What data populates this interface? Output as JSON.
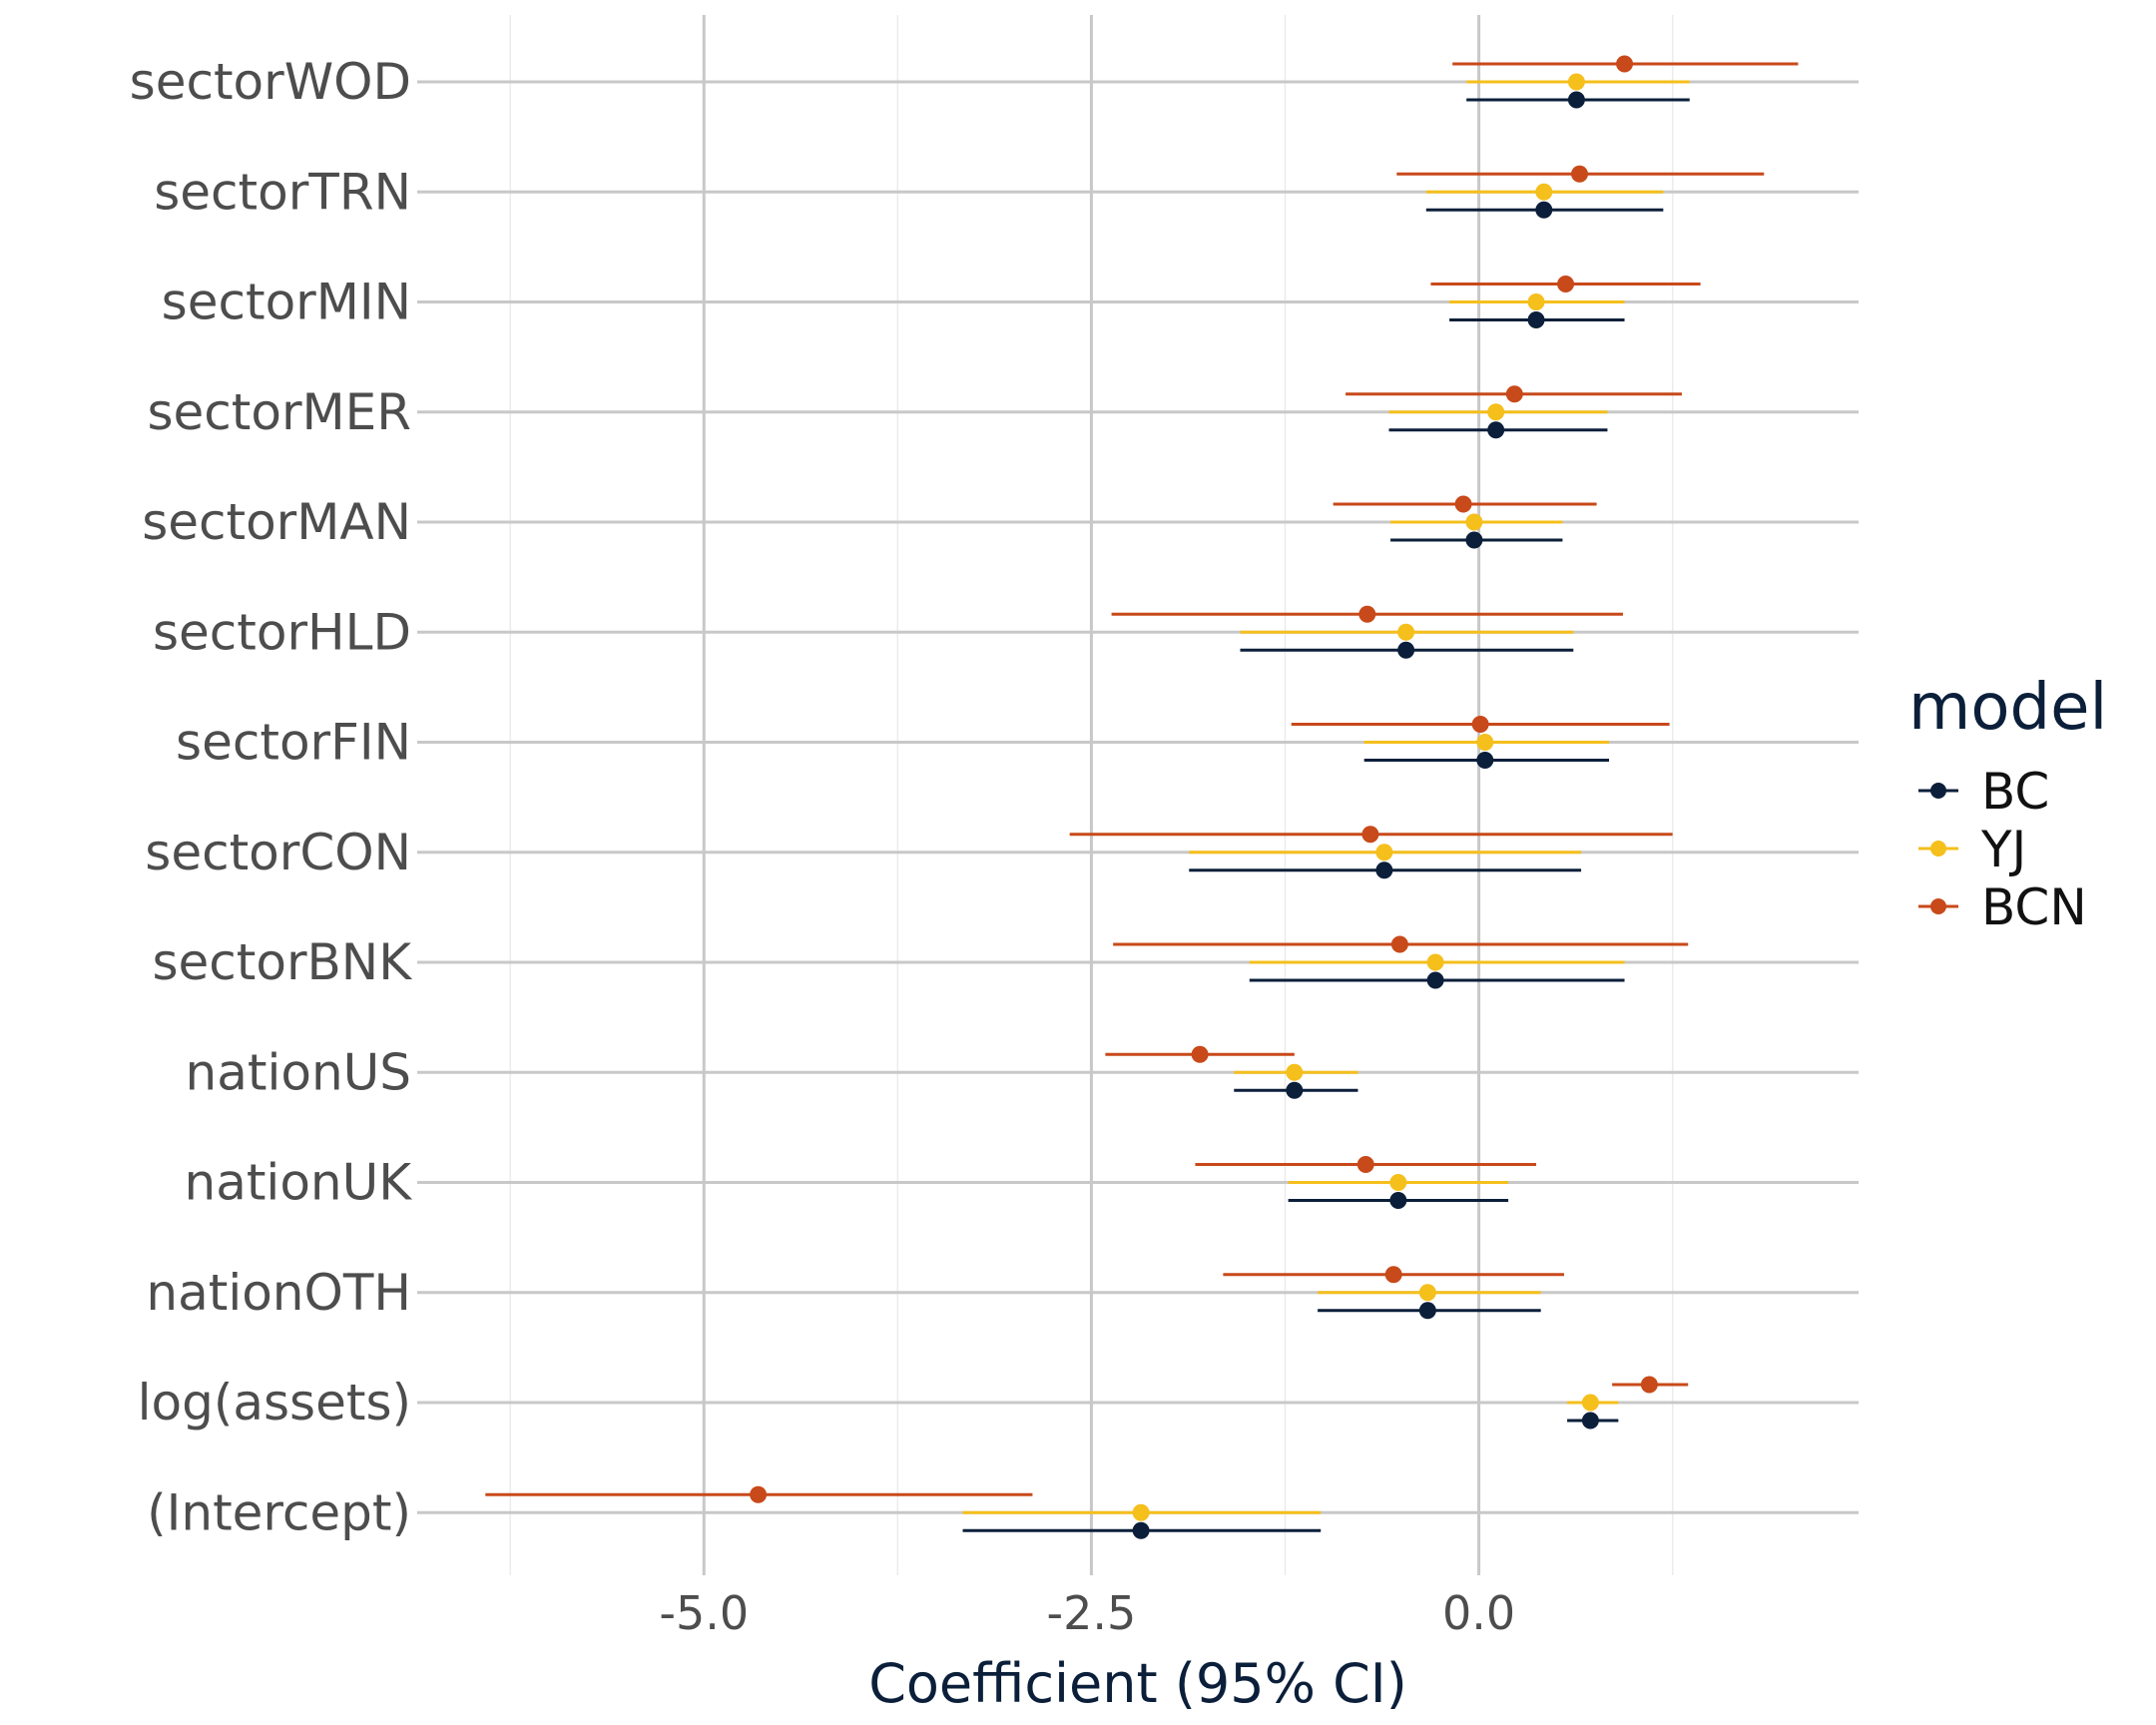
{
  "chart_data": {
    "type": "coefficient-plot",
    "xlabel": "Coefficient (95% CI)",
    "ylabel": "",
    "xlim": [
      -6.85,
      2.45
    ],
    "x_ticks": [
      -5.0,
      -2.5,
      0.0
    ],
    "x_tick_labels": [
      "-5.0",
      "-2.5",
      "0.0"
    ],
    "x_minor_ticks": [
      -6.25,
      -3.75,
      -1.25,
      1.25
    ],
    "categories": [
      "sectorWOD",
      "sectorTRN",
      "sectorMIN",
      "sectorMER",
      "sectorMAN",
      "sectorHLD",
      "sectorFIN",
      "sectorCON",
      "sectorBNK",
      "nationUS",
      "nationUK",
      "nationOTH",
      "log(assets)",
      "(Intercept)"
    ],
    "grid": true,
    "legend": {
      "title": "model",
      "position": "right"
    },
    "series": [
      {
        "name": "BC",
        "color": "#0b1f3a",
        "estimate": [
          0.63,
          0.42,
          0.37,
          0.11,
          -0.03,
          -0.47,
          0.04,
          -0.61,
          -0.28,
          -1.19,
          -0.52,
          -0.33,
          0.72,
          -2.18
        ],
        "lower": [
          -0.08,
          -0.34,
          -0.19,
          -0.58,
          -0.57,
          -1.54,
          -0.74,
          -1.87,
          -1.48,
          -1.58,
          -1.23,
          -1.04,
          0.57,
          -3.33
        ],
        "upper": [
          1.36,
          1.19,
          0.94,
          0.83,
          0.54,
          0.61,
          0.84,
          0.66,
          0.94,
          -0.78,
          0.19,
          0.4,
          0.9,
          -1.02
        ]
      },
      {
        "name": "YJ",
        "color": "#f5bf1c",
        "estimate": [
          0.63,
          0.42,
          0.37,
          0.11,
          -0.03,
          -0.47,
          0.04,
          -0.61,
          -0.28,
          -1.19,
          -0.52,
          -0.33,
          0.72,
          -2.18
        ],
        "lower": [
          -0.08,
          -0.34,
          -0.19,
          -0.58,
          -0.57,
          -1.54,
          -0.74,
          -1.87,
          -1.48,
          -1.58,
          -1.23,
          -1.04,
          0.57,
          -3.33
        ],
        "upper": [
          1.36,
          1.19,
          0.94,
          0.83,
          0.54,
          0.61,
          0.84,
          0.66,
          0.94,
          -0.78,
          0.19,
          0.4,
          0.9,
          -1.02
        ]
      },
      {
        "name": "BCN",
        "color": "#c8491a",
        "estimate": [
          0.94,
          0.65,
          0.56,
          0.23,
          -0.1,
          -0.72,
          0.01,
          -0.7,
          -0.51,
          -1.8,
          -0.73,
          -0.55,
          1.1,
          -4.65
        ],
        "lower": [
          -0.17,
          -0.53,
          -0.31,
          -0.86,
          -0.94,
          -2.37,
          -1.21,
          -2.64,
          -2.36,
          -2.41,
          -1.83,
          -1.65,
          0.86,
          -6.41
        ],
        "upper": [
          2.06,
          1.84,
          1.43,
          1.31,
          0.76,
          0.93,
          1.23,
          1.25,
          1.35,
          -1.19,
          0.37,
          0.55,
          1.35,
          -2.88
        ]
      }
    ]
  }
}
